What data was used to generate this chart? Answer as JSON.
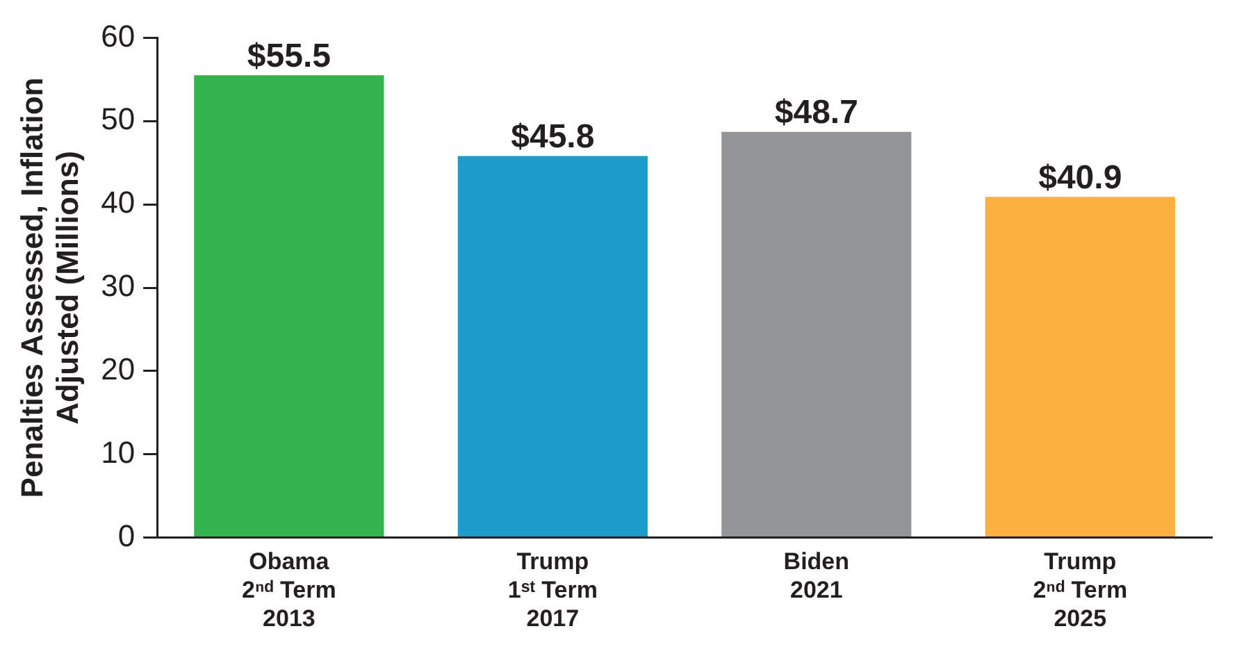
{
  "chart_data": {
    "type": "bar",
    "ylabel": "Penalties Assessed, Inflation\nAdjusted (Millions)",
    "categories": [
      "Obama\n2ⁿᵈ Term\n2013",
      "Trump\n1ˢᵗ Term\n2017",
      "Biden\n2021",
      "Trump\n2ⁿᵈ Term\n2025"
    ],
    "values": [
      55.5,
      45.8,
      48.7,
      40.9
    ],
    "colors": [
      "#34b44f",
      "#1d9bcb",
      "#939598",
      "#fbb040"
    ],
    "value_labels": [
      "$55.5",
      "$45.8",
      "$48.7",
      "$40.9"
    ],
    "ylim": [
      0,
      60
    ],
    "yticks": [
      0,
      10,
      20,
      30,
      40,
      50,
      60
    ],
    "grid": false,
    "legend": false
  }
}
